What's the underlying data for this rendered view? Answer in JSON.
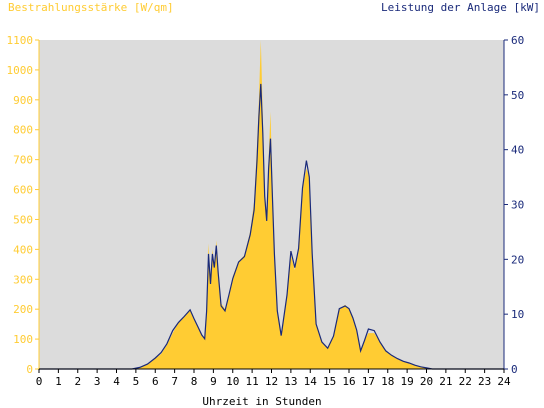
{
  "chart_data": {
    "type": "area",
    "left_axis_label": "Bestrahlungsstärke [W/qm]",
    "right_axis_label": "Leistung der Anlage [kW]",
    "xlabel": "Uhrzeit in Stunden",
    "xlim": [
      0,
      24
    ],
    "x_ticks": [
      0,
      1,
      2,
      3,
      4,
      5,
      6,
      7,
      8,
      9,
      10,
      11,
      12,
      13,
      14,
      15,
      16,
      17,
      18,
      19,
      20,
      21,
      22,
      23,
      24
    ],
    "ylim_left": [
      0,
      1100
    ],
    "y_ticks_left": [
      0,
      100,
      200,
      300,
      400,
      500,
      600,
      700,
      800,
      900,
      1000,
      1100
    ],
    "ylim_right": [
      0,
      60
    ],
    "y_ticks_right": [
      0,
      10,
      20,
      30,
      40,
      50,
      60
    ],
    "grid": false,
    "colors": {
      "plot_background": "#dcdcdc",
      "irradiance_fill": "#ffcc33",
      "power_line": "#1a2a7a",
      "left_axis_text": "#ffcc33",
      "right_axis_text": "#1a2a7a",
      "x_axis_text": "#000000"
    },
    "series": [
      {
        "axis": "left",
        "x": [
          0,
          4.8,
          5.2,
          5.6,
          6.0,
          6.3,
          6.6,
          6.9,
          7.2,
          7.5,
          7.8,
          8.0,
          8.2,
          8.4,
          8.55,
          8.65,
          8.75,
          8.85,
          8.95,
          9.05,
          9.15,
          9.25,
          9.4,
          9.6,
          9.8,
          10.0,
          10.3,
          10.6,
          10.9,
          11.1,
          11.25,
          11.35,
          11.45,
          11.55,
          11.65,
          11.75,
          11.85,
          11.95,
          12.05,
          12.15,
          12.3,
          12.5,
          12.8,
          13.0,
          13.2,
          13.4,
          13.6,
          13.8,
          13.95,
          14.1,
          14.3,
          14.6,
          14.9,
          15.2,
          15.5,
          15.8,
          16.0,
          16.2,
          16.4,
          16.6,
          16.8,
          17.0,
          17.3,
          17.6,
          17.9,
          18.2,
          18.5,
          18.8,
          19.1,
          19.4,
          19.7,
          20.0,
          20.3,
          24
        ],
        "values": [
          0,
          0,
          5,
          15,
          35,
          50,
          80,
          120,
          155,
          175,
          200,
          165,
          140,
          110,
          100,
          200,
          420,
          300,
          400,
          340,
          430,
          340,
          220,
          200,
          250,
          310,
          360,
          380,
          460,
          560,
          750,
          900,
          1100,
          850,
          600,
          500,
          700,
          860,
          600,
          400,
          200,
          110,
          250,
          380,
          330,
          400,
          600,
          670,
          640,
          380,
          150,
          90,
          70,
          110,
          200,
          215,
          200,
          170,
          130,
          60,
          95,
          120,
          120,
          90,
          60,
          45,
          35,
          25,
          20,
          12,
          8,
          3,
          0,
          0
        ]
      },
      {
        "axis": "right",
        "x": [
          0,
          4.8,
          5.2,
          5.6,
          6.0,
          6.3,
          6.6,
          6.9,
          7.2,
          7.5,
          7.8,
          8.0,
          8.2,
          8.4,
          8.55,
          8.65,
          8.75,
          8.85,
          8.95,
          9.05,
          9.15,
          9.25,
          9.4,
          9.6,
          9.8,
          10.0,
          10.3,
          10.6,
          10.9,
          11.1,
          11.25,
          11.35,
          11.45,
          11.55,
          11.65,
          11.75,
          11.85,
          11.95,
          12.05,
          12.15,
          12.3,
          12.5,
          12.8,
          13.0,
          13.2,
          13.4,
          13.6,
          13.8,
          13.95,
          14.1,
          14.3,
          14.6,
          14.9,
          15.2,
          15.5,
          15.8,
          16.0,
          16.2,
          16.4,
          16.6,
          16.8,
          17.0,
          17.3,
          17.6,
          17.9,
          18.2,
          18.5,
          18.8,
          19.1,
          19.4,
          19.7,
          20.0,
          20.3,
          24
        ],
        "values": [
          0,
          0,
          0.3,
          0.9,
          2.0,
          3.0,
          4.6,
          7.0,
          8.5,
          9.6,
          10.8,
          9.2,
          7.7,
          6.2,
          5.5,
          10.5,
          21.0,
          15.5,
          21.0,
          18.5,
          22.5,
          17.5,
          11.5,
          10.6,
          13.5,
          16.5,
          19.5,
          20.5,
          24.5,
          29.0,
          38.0,
          46.0,
          52.0,
          43.0,
          31.5,
          27.0,
          36.5,
          42.0,
          31.0,
          21.0,
          10.6,
          6.1,
          13.5,
          21.5,
          18.5,
          22.0,
          33.0,
          38.0,
          35.0,
          21.0,
          8.2,
          4.9,
          3.8,
          6.0,
          11.0,
          11.5,
          11.0,
          9.3,
          7.1,
          3.3,
          5.2,
          7.3,
          7.0,
          4.9,
          3.3,
          2.5,
          1.9,
          1.4,
          1.1,
          0.7,
          0.4,
          0.2,
          0,
          0
        ]
      }
    ]
  }
}
